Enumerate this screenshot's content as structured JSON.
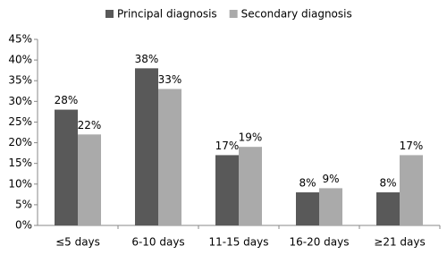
{
  "chart_data": {
    "type": "bar",
    "categories": [
      "≤5 days",
      "6-10 days",
      "11-15 days",
      "16-20 days",
      "≥21 days"
    ],
    "series": [
      {
        "name": "Principal diagnosis",
        "color": "#595959",
        "values": [
          28,
          38,
          17,
          8,
          8
        ],
        "value_labels": [
          "28%",
          "38%",
          "17%",
          "8%",
          "8%"
        ]
      },
      {
        "name": "Secondary diagnosis",
        "color": "#aaaaaa",
        "values": [
          22,
          33,
          19,
          9,
          17
        ],
        "value_labels": [
          "22%",
          "33%",
          "19%",
          "9%",
          "17%"
        ]
      }
    ],
    "ylim": [
      0,
      45
    ],
    "yticks": [
      {
        "value": 0,
        "label": "0%"
      },
      {
        "value": 5,
        "label": "5%"
      },
      {
        "value": 10,
        "label": "10%"
      },
      {
        "value": 15,
        "label": "15%"
      },
      {
        "value": 20,
        "label": "20%"
      },
      {
        "value": 25,
        "label": "25%"
      },
      {
        "value": 30,
        "label": "30%"
      },
      {
        "value": 35,
        "label": "35%"
      },
      {
        "value": 40,
        "label": "40%"
      },
      {
        "value": 45,
        "label": "45%"
      }
    ],
    "grid": false,
    "legend": "top"
  }
}
